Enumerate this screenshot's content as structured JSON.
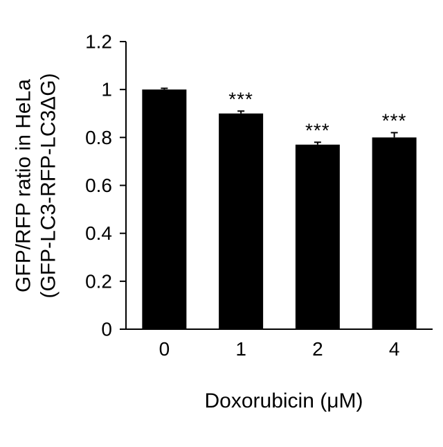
{
  "chart_data": {
    "type": "bar",
    "categories": [
      "0",
      "1",
      "2",
      "4"
    ],
    "values": [
      1.0,
      0.9,
      0.77,
      0.8
    ],
    "errors": [
      0.005,
      0.01,
      0.01,
      0.02
    ],
    "significance": [
      "",
      "***",
      "***",
      "***"
    ],
    "xlabel": "Doxorubicin (μM)",
    "ylabel_lines": [
      "GFP/RFP ratio in HeLa",
      "(GFP-LC3-RFP-LC3ΔG)"
    ],
    "ylim": [
      0,
      1.2
    ],
    "yticks": [
      "0",
      "0.2",
      "0.4",
      "0.6",
      "0.8",
      "1",
      "1.2"
    ],
    "grid": false,
    "bar_color": "#000000"
  }
}
